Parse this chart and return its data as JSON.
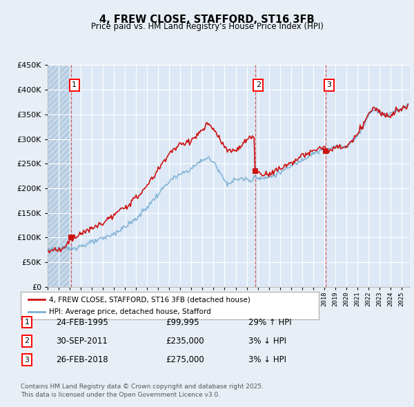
{
  "title": "4, FREW CLOSE, STAFFORD, ST16 3FB",
  "subtitle": "Price paid vs. HM Land Registry's House Price Index (HPI)",
  "ylim": [
    0,
    450000
  ],
  "yticks": [
    0,
    50000,
    100000,
    150000,
    200000,
    250000,
    300000,
    350000,
    400000,
    450000
  ],
  "ytick_labels": [
    "£0",
    "£50K",
    "£100K",
    "£150K",
    "£200K",
    "£250K",
    "£300K",
    "£350K",
    "£400K",
    "£450K"
  ],
  "xlim_start": 1993.0,
  "xlim_end": 2025.75,
  "background_color": "#e8eef5",
  "plot_bg_color": "#dce8f5",
  "grid_color": "#ffffff",
  "purchase_dates": [
    1995.12,
    2011.75,
    2018.15
  ],
  "purchase_prices": [
    99995,
    235000,
    275000
  ],
  "purchase_labels": [
    "1",
    "2",
    "3"
  ],
  "legend_line1": "4, FREW CLOSE, STAFFORD, ST16 3FB (detached house)",
  "legend_line2": "HPI: Average price, detached house, Stafford",
  "table_rows": [
    [
      "1",
      "24-FEB-1995",
      "£99,995",
      "29% ↑ HPI"
    ],
    [
      "2",
      "30-SEP-2011",
      "£235,000",
      "3% ↓ HPI"
    ],
    [
      "3",
      "26-FEB-2018",
      "£275,000",
      "3% ↓ HPI"
    ]
  ],
  "footer": "Contains HM Land Registry data © Crown copyright and database right 2025.\nThis data is licensed under the Open Government Licence v3.0.",
  "hpi_line_color": "#7bafd4",
  "price_line_color": "#cc1111"
}
